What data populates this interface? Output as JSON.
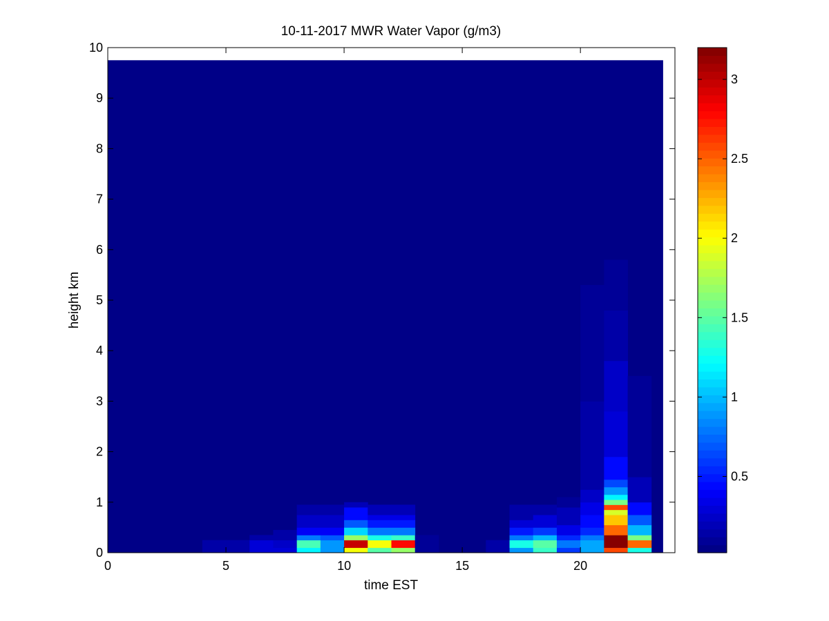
{
  "chart_data": {
    "type": "heatmap",
    "title": "10-11-2017 MWR Water Vapor (g/m3)",
    "xlabel": "time EST",
    "ylabel": "height km",
    "xlim": [
      0,
      24
    ],
    "ylim": [
      0,
      10
    ],
    "xticks": [
      0,
      5,
      10,
      15,
      20
    ],
    "yticks": [
      0,
      1,
      2,
      3,
      4,
      5,
      6,
      7,
      8,
      9,
      10
    ],
    "colormap": "jet",
    "clim": [
      0.02,
      3.2
    ],
    "colorbar_ticks": [
      0.5,
      1,
      1.5,
      2,
      2.5,
      3
    ],
    "grid": false,
    "data_extent": {
      "x": [
        0,
        23.5
      ],
      "y": [
        0,
        9.75
      ]
    },
    "x_centers": [
      0.5,
      1.5,
      2.5,
      3.5,
      4.5,
      5.5,
      6.5,
      7.5,
      8.5,
      9.5,
      10.5,
      11.5,
      12.5,
      13.5,
      14.5,
      15.5,
      16.5,
      17.5,
      18.5,
      19.5,
      20.5,
      21.5,
      22.5
    ],
    "background_value": 0.05,
    "profiles": [
      {
        "time": 4.5,
        "layers": [
          [
            0,
            0.25,
            0.15
          ]
        ]
      },
      {
        "time": 5.5,
        "layers": [
          [
            0,
            0.25,
            0.15
          ]
        ]
      },
      {
        "time": 6.5,
        "layers": [
          [
            0,
            0.25,
            0.3
          ],
          [
            0.25,
            0.35,
            0.12
          ]
        ]
      },
      {
        "time": 7.5,
        "layers": [
          [
            0,
            0.1,
            0.3
          ],
          [
            0.1,
            0.25,
            0.25
          ],
          [
            0.25,
            0.45,
            0.13
          ]
        ]
      },
      {
        "time": 8.5,
        "layers": [
          [
            0,
            0.1,
            1.2
          ],
          [
            0.1,
            0.25,
            1.45
          ],
          [
            0.25,
            0.35,
            0.8
          ],
          [
            0.35,
            0.5,
            0.4
          ],
          [
            0.5,
            0.75,
            0.25
          ],
          [
            0.75,
            0.95,
            0.12
          ]
        ]
      },
      {
        "time": 9.5,
        "layers": [
          [
            0,
            0.25,
            0.9
          ],
          [
            0.25,
            0.35,
            0.7
          ],
          [
            0.35,
            0.5,
            0.4
          ],
          [
            0.5,
            0.75,
            0.25
          ],
          [
            0.75,
            0.95,
            0.12
          ]
        ]
      },
      {
        "time": 10.5,
        "layers": [
          [
            0,
            0.1,
            2.0
          ],
          [
            0.1,
            0.25,
            3.0
          ],
          [
            0.25,
            0.35,
            1.7
          ],
          [
            0.35,
            0.5,
            1.1
          ],
          [
            0.5,
            0.65,
            0.7
          ],
          [
            0.65,
            0.9,
            0.45
          ],
          [
            0.9,
            1.0,
            0.2
          ]
        ]
      },
      {
        "time": 11.5,
        "layers": [
          [
            0,
            0.1,
            1.5
          ],
          [
            0.1,
            0.25,
            2.0
          ],
          [
            0.25,
            0.35,
            1.3
          ],
          [
            0.35,
            0.5,
            0.8
          ],
          [
            0.5,
            0.65,
            0.5
          ],
          [
            0.65,
            0.75,
            0.35
          ],
          [
            0.75,
            0.95,
            0.18
          ]
        ]
      },
      {
        "time": 12.5,
        "layers": [
          [
            0,
            0.1,
            1.7
          ],
          [
            0.1,
            0.25,
            2.8
          ],
          [
            0.25,
            0.35,
            1.4
          ],
          [
            0.35,
            0.5,
            0.8
          ],
          [
            0.5,
            0.65,
            0.5
          ],
          [
            0.65,
            0.75,
            0.35
          ],
          [
            0.75,
            0.95,
            0.18
          ]
        ]
      },
      {
        "time": 13.5,
        "layers": [
          [
            0,
            0.35,
            0.1
          ]
        ]
      },
      {
        "time": 16.5,
        "layers": [
          [
            0,
            0.25,
            0.12
          ]
        ]
      },
      {
        "time": 17.5,
        "layers": [
          [
            0,
            0.1,
            0.9
          ],
          [
            0.1,
            0.25,
            1.3
          ],
          [
            0.25,
            0.35,
            0.8
          ],
          [
            0.35,
            0.5,
            0.5
          ],
          [
            0.5,
            0.65,
            0.3
          ],
          [
            0.65,
            0.95,
            0.15
          ]
        ]
      },
      {
        "time": 18.5,
        "layers": [
          [
            0,
            0.1,
            1.4
          ],
          [
            0.1,
            0.25,
            1.5
          ],
          [
            0.25,
            0.35,
            1.0
          ],
          [
            0.35,
            0.5,
            0.6
          ],
          [
            0.5,
            0.75,
            0.3
          ],
          [
            0.75,
            0.95,
            0.14
          ]
        ]
      },
      {
        "time": 19.5,
        "layers": [
          [
            0,
            0.1,
            0.6
          ],
          [
            0.1,
            0.25,
            0.8
          ],
          [
            0.25,
            0.35,
            0.55
          ],
          [
            0.35,
            0.55,
            0.35
          ],
          [
            0.55,
            0.9,
            0.18
          ],
          [
            0.9,
            1.1,
            0.1
          ]
        ]
      },
      {
        "time": 20.5,
        "layers": [
          [
            0,
            0.25,
            0.95
          ],
          [
            0.25,
            0.35,
            0.8
          ],
          [
            0.35,
            0.5,
            0.55
          ],
          [
            0.5,
            0.75,
            0.45
          ],
          [
            0.75,
            1.0,
            0.35
          ],
          [
            1.0,
            1.25,
            0.25
          ],
          [
            1.25,
            3.0,
            0.12
          ],
          [
            3.0,
            5.3,
            0.09
          ]
        ]
      },
      {
        "time": 21.5,
        "layers": [
          [
            0,
            0.1,
            2.6
          ],
          [
            0.1,
            0.35,
            3.2
          ],
          [
            0.35,
            0.55,
            2.5
          ],
          [
            0.55,
            0.75,
            2.2
          ],
          [
            0.75,
            0.85,
            1.9
          ],
          [
            0.85,
            0.95,
            2.6
          ],
          [
            0.95,
            1.05,
            1.6
          ],
          [
            1.05,
            1.15,
            1.2
          ],
          [
            1.15,
            1.3,
            0.9
          ],
          [
            1.3,
            1.45,
            0.65
          ],
          [
            1.45,
            1.9,
            0.45
          ],
          [
            1.9,
            2.8,
            0.3
          ],
          [
            2.8,
            3.8,
            0.22
          ],
          [
            3.8,
            4.8,
            0.15
          ],
          [
            4.8,
            5.8,
            0.1
          ]
        ]
      },
      {
        "time": 22.5,
        "layers": [
          [
            0,
            0.1,
            1.3
          ],
          [
            0.1,
            0.25,
            2.5
          ],
          [
            0.25,
            0.35,
            1.6
          ],
          [
            0.35,
            0.55,
            1.0
          ],
          [
            0.55,
            0.75,
            0.7
          ],
          [
            0.75,
            1.0,
            0.45
          ],
          [
            1.0,
            1.5,
            0.18
          ],
          [
            1.5,
            3.5,
            0.08
          ]
        ]
      }
    ]
  }
}
